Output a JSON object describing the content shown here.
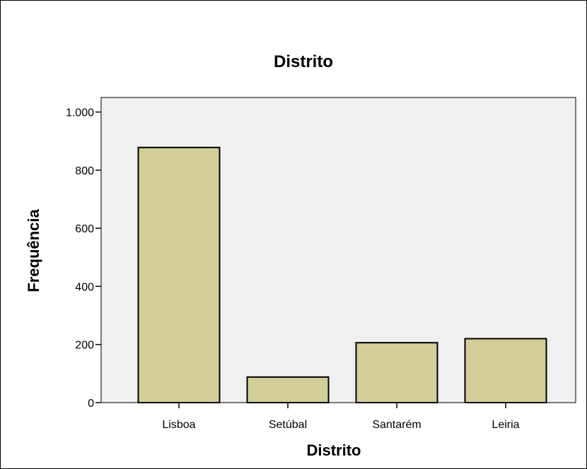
{
  "chart_data": {
    "type": "bar",
    "title": "Distrito",
    "xlabel": "Distrito",
    "ylabel": "Frequência",
    "categories": [
      "Lisboa",
      "Setúbal",
      "Santarém",
      "Leiria"
    ],
    "values": [
      878,
      88,
      206,
      220
    ],
    "ylim": [
      0,
      1050
    ],
    "yticks": [
      0,
      200,
      400,
      600,
      800,
      1000
    ],
    "ytick_labels": [
      "0",
      "200",
      "400",
      "600",
      "800",
      "1.000"
    ],
    "grid": false,
    "legend": "none",
    "colors": {
      "bar_fill": "#d3cd98",
      "bar_stroke": "#000000",
      "plot_background": "#f0f0f0"
    }
  }
}
